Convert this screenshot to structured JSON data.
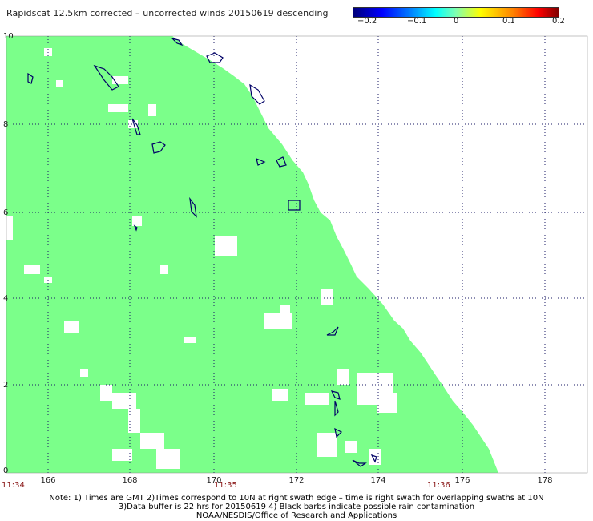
{
  "title": "Rapidscat 12.5km corrected – uncorrected winds 20150619 descending",
  "colorbar": {
    "ticks": [
      "−0.2",
      "−0.1",
      "0",
      "0.1",
      "0.2"
    ],
    "colors": [
      "#00007a",
      "#0000ff",
      "#00ffff",
      "#80ffb0",
      "#ffff00",
      "#ff8000",
      "#ff0000",
      "#800000"
    ]
  },
  "map": {
    "y_ticks": [
      "10",
      "8",
      "6",
      "4",
      "2",
      "0"
    ],
    "x_ticks": [
      "166",
      "168",
      "170",
      "172",
      "174",
      "176",
      "178"
    ],
    "times": [
      "11:34",
      "11:35",
      "11:36"
    ],
    "swath_color": "#7bff8a",
    "island_color": "#000066"
  },
  "notes": [
    "Note: 1) Times are GMT 2)Times correspond to 10N at right swath edge – time is right swath for overlapping swaths at 10N",
    "3)Data buffer is 22 hrs for 20150619 4) Black barbs indicate possible rain contamination",
    "NOAA/NESDIS/Office of Research and Applications"
  ]
}
